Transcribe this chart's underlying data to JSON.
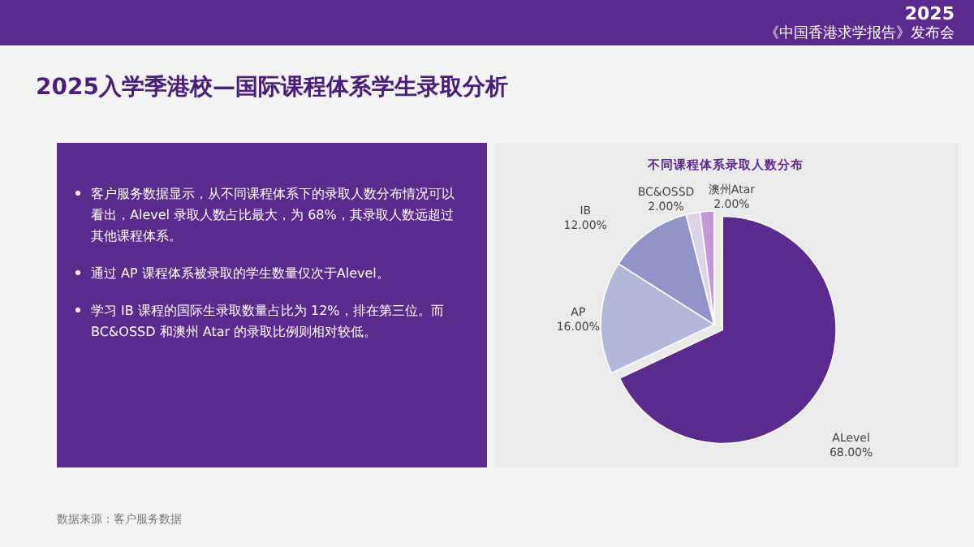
{
  "chart_data": [
    {
      "type": "other",
      "title": "2025入学季港校—国际课程体系学生录取分析",
      "subtitle": "2025\n《中国香港求学报告》发布会",
      "annotations": [
        "客户服务数据显示，从不同课程体系下的录取人数分布情况可以看出，Alevel 录取人数占比最大，为 68%，其录取人数远超过其他课程体系。",
        "通过 AP 课程体系被录取的学生数量仅次于Alevel。",
        "学习 IB 课程的国际生录取数量占比为 12%，排在第三位。而 BC&OSSD 和澳州 Atar 的录取比例则相对较低。",
        "数据来源：客户服务数据"
      ]
    },
    {
      "type": "pie",
      "title": "不同课程体系录取人数分布",
      "categories": [
        "ALevel",
        "AP",
        "IB",
        "BC&OSSD",
        "澳州Atar"
      ],
      "values": [
        68,
        16,
        12,
        2,
        2
      ],
      "colors": [
        "#5b2a8c",
        "#b4b6da",
        "#8f93c6",
        "#ddd3e8",
        "#c49ad6"
      ],
      "value_labels": [
        "68.00%",
        "16.00%",
        "12.00%",
        "2.00%",
        "2.00%"
      ]
    }
  ]
}
